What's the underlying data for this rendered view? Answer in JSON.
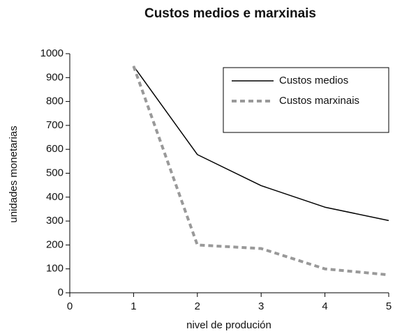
{
  "chart_data": {
    "type": "line",
    "title": "Custos medios e marxinais",
    "x_label": "nivel de produción",
    "y_label": "unidades monetarias",
    "x": [
      1,
      2,
      3,
      4,
      5
    ],
    "series": [
      {
        "name": "Custos medios",
        "color": "#000000",
        "dash": false,
        "values": [
          948,
          578,
          448,
          358,
          302
        ]
      },
      {
        "name": "Custos marxinais",
        "color": "#999999",
        "dash": true,
        "values": [
          948,
          200,
          185,
          100,
          75
        ]
      }
    ],
    "xlim": [
      0,
      5
    ],
    "xticks": [
      0,
      1,
      2,
      3,
      4,
      5
    ],
    "ylim": [
      0,
      1000
    ],
    "yticks": [
      0,
      100,
      200,
      300,
      400,
      500,
      600,
      700,
      800,
      900,
      1000
    ],
    "legend": "upper right"
  }
}
